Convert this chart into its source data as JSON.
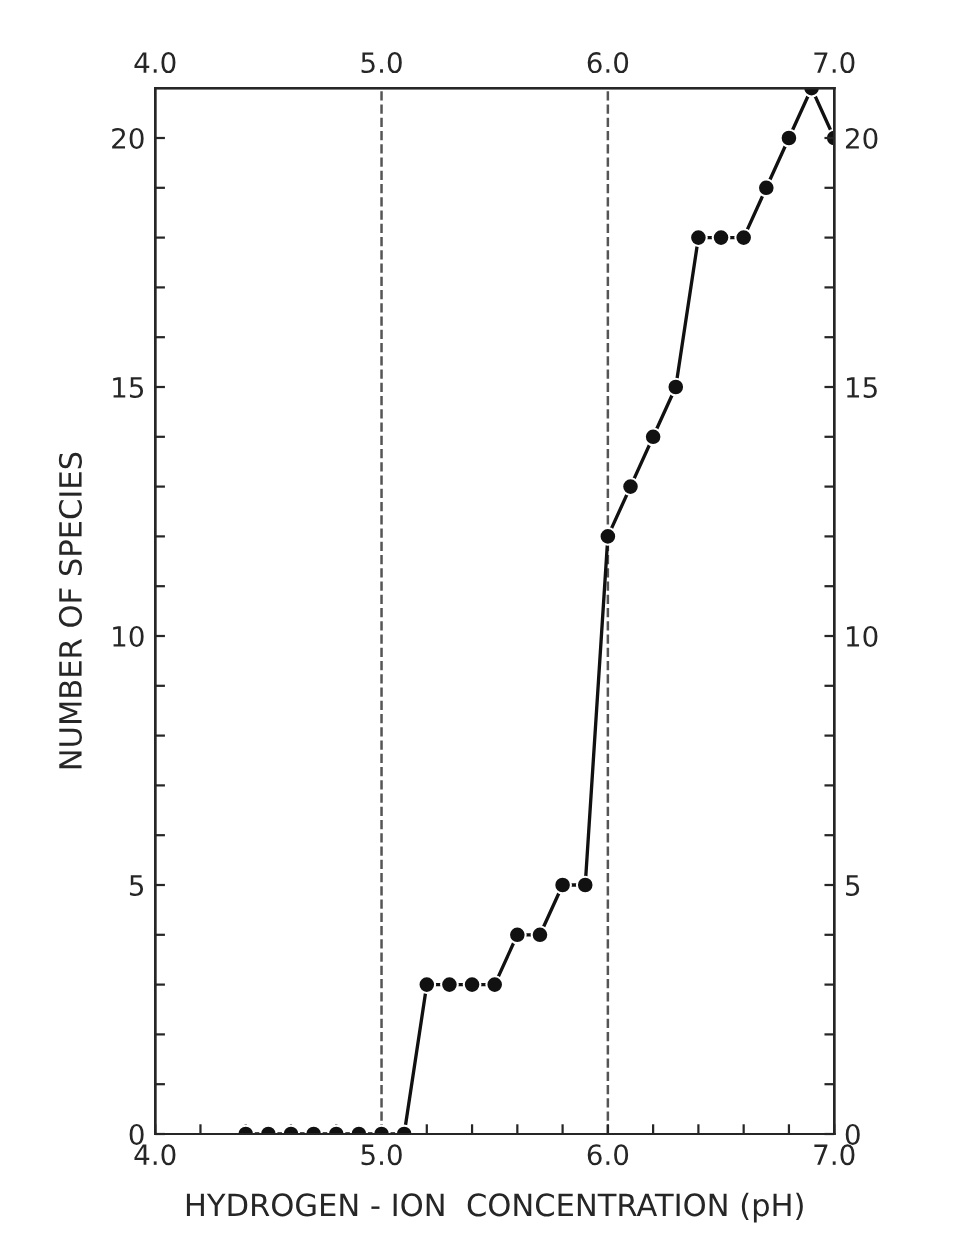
{
  "chart_data": {
    "type": "line",
    "xlabel": "HYDROGEN - ION  CONCENTRATION (pH)",
    "ylabel": "NUMBER OF SPECIES",
    "x": [
      4.4,
      4.5,
      4.6,
      4.7,
      4.8,
      4.9,
      5.0,
      5.1,
      5.2,
      5.3,
      5.4,
      5.5,
      5.6,
      5.7,
      5.8,
      5.9,
      6.0,
      6.1,
      6.2,
      6.3,
      6.4,
      6.5,
      6.6,
      6.7,
      6.8,
      6.9,
      7.0
    ],
    "series": [
      {
        "color": "#111111",
        "values": [
          0,
          0,
          0,
          0,
          0,
          0,
          0,
          0,
          3,
          3,
          3,
          3,
          4,
          4,
          5,
          5,
          12,
          13,
          14,
          15,
          18,
          18,
          18,
          19,
          20,
          21,
          20
        ]
      }
    ],
    "marker": "circle",
    "line_style": "solid",
    "grid": false,
    "xlim": [
      4.0,
      7.0
    ],
    "xticks": [
      {
        "value": 4.0,
        "label": "4.0"
      },
      {
        "value": 4.2,
        "label": null
      },
      {
        "value": 4.4,
        "label": null
      },
      {
        "value": 4.6,
        "label": null
      },
      {
        "value": 4.8,
        "label": null
      },
      {
        "value": 5.0,
        "label": "5.0"
      },
      {
        "value": 5.2,
        "label": null
      },
      {
        "value": 5.4,
        "label": null
      },
      {
        "value": 5.6,
        "label": null
      },
      {
        "value": 5.8,
        "label": null
      },
      {
        "value": 6.0,
        "label": "6.0"
      },
      {
        "value": 6.2,
        "label": null
      },
      {
        "value": 6.4,
        "label": null
      },
      {
        "value": 6.6,
        "label": null
      },
      {
        "value": 6.8,
        "label": null
      },
      {
        "value": 7.0,
        "label": "7.0"
      }
    ],
    "x2lim": [
      4.0,
      7.0
    ],
    "x2ticks": [
      {
        "value": 4.0,
        "label": "4.0"
      },
      {
        "value": 5.0,
        "label": "5.0"
      },
      {
        "value": 6.0,
        "label": "6.0"
      },
      {
        "value": 7.0,
        "label": "7.0"
      }
    ],
    "ylim": [
      0,
      21
    ],
    "yticks": [
      0,
      {
        "value": 1,
        "label": null
      },
      {
        "value": 2,
        "label": null
      },
      {
        "value": 3,
        "label": null
      },
      {
        "value": 4,
        "label": null
      },
      5,
      {
        "value": 6,
        "label": null
      },
      {
        "value": 7,
        "label": null
      },
      {
        "value": 8,
        "label": null
      },
      {
        "value": 9,
        "label": null
      },
      10,
      {
        "value": 11,
        "label": null
      },
      {
        "value": 12,
        "label": null
      },
      {
        "value": 13,
        "label": null
      },
      {
        "value": 14,
        "label": null
      },
      15,
      {
        "value": 16,
        "label": null
      },
      {
        "value": 17,
        "label": null
      },
      {
        "value": 18,
        "label": null
      },
      {
        "value": 19,
        "label": null
      },
      20
    ],
    "y2lim": [
      0,
      21
    ],
    "y2ticks": [
      0,
      {
        "value": 1,
        "label": null
      },
      {
        "value": 2,
        "label": null
      },
      {
        "value": 3,
        "label": null
      },
      {
        "value": 4,
        "label": null
      },
      5,
      {
        "value": 6,
        "label": null
      },
      {
        "value": 7,
        "label": null
      },
      {
        "value": 8,
        "label": null
      },
      {
        "value": 9,
        "label": null
      },
      10,
      {
        "value": 11,
        "label": null
      },
      {
        "value": 12,
        "label": null
      },
      {
        "value": 13,
        "label": null
      },
      {
        "value": 14,
        "label": null
      },
      15,
      {
        "value": 16,
        "label": null
      },
      {
        "value": 17,
        "label": null
      },
      {
        "value": 18,
        "label": null
      },
      {
        "value": 19,
        "label": null
      },
      20
    ],
    "ref_lines": [
      {
        "axis": "x",
        "value": 5.0,
        "color": "#555555",
        "line_style": "dashed"
      },
      {
        "axis": "x",
        "value": 6.0,
        "color": "#555555",
        "line_style": "dashed"
      }
    ]
  }
}
